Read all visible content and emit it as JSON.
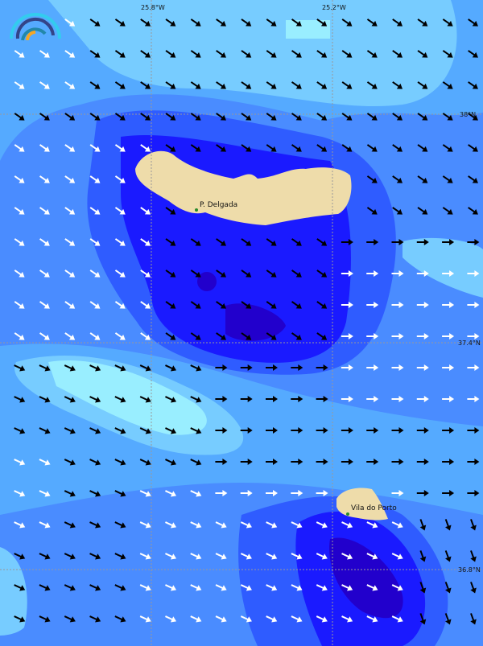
{
  "map": {
    "longitude_labels": [
      "25.8°W",
      "25.2°W"
    ],
    "latitude_labels": [
      "38°N",
      "37.4°N",
      "36.8°N"
    ],
    "places": [
      {
        "name": "P. Delgada"
      },
      {
        "name": "Vila do Porto"
      }
    ],
    "palette": {
      "land": "#eedcaa",
      "level1": "#2200cc",
      "level2": "#1a1aff",
      "level3": "#2f5cff",
      "level4": "#4a8cff",
      "level5": "#55aaff",
      "level6": "#77ccff",
      "level7": "#99eeff",
      "arrow_dark": "#000000",
      "arrow_light": "#ffffff",
      "town_marker": "#2a8a2a"
    },
    "logo_icon": "wind-gauge-logo"
  }
}
